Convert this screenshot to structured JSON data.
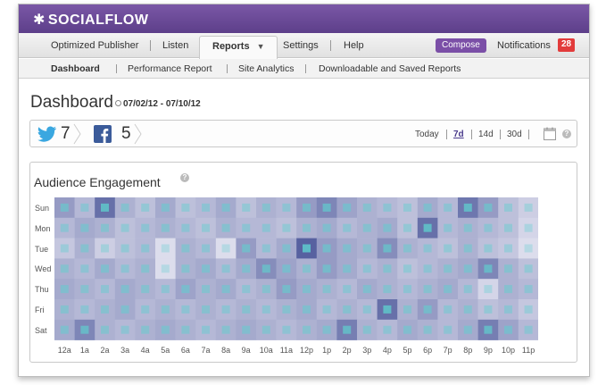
{
  "brand": {
    "name": "SOCIALFLOW",
    "logo_icon": "asterisk-star-icon"
  },
  "nav": {
    "items": [
      {
        "label": "Optimized Publisher"
      },
      {
        "label": "Listen"
      },
      {
        "label": "Reports",
        "active": true
      },
      {
        "label": "Settings"
      },
      {
        "label": "Help"
      }
    ],
    "compose_label": "Compose",
    "notifications_label": "Notifications",
    "notifications_count": "28"
  },
  "subnav": {
    "items": [
      {
        "label": "Dashboard",
        "active": true
      },
      {
        "label": "Performance Report"
      },
      {
        "label": "Site Analytics"
      },
      {
        "label": "Downloadable and Saved Reports"
      }
    ]
  },
  "page": {
    "title": "Dashboard",
    "date_range": "07/02/12 - 07/10/12"
  },
  "toolbar": {
    "twitter_count": "7",
    "facebook_count": "5",
    "ranges": [
      {
        "label": "Today"
      },
      {
        "label": "7d",
        "selected": true
      },
      {
        "label": "14d"
      },
      {
        "label": "30d"
      }
    ]
  },
  "engagement": {
    "title": "Audience Engagement",
    "days": [
      "Sun",
      "Mon",
      "Tue",
      "Wed",
      "Thu",
      "Fri",
      "Sat"
    ],
    "hours": [
      "12a",
      "1a",
      "2a",
      "3a",
      "4a",
      "5a",
      "6a",
      "7a",
      "8a",
      "9a",
      "10a",
      "11a",
      "12p",
      "1p",
      "2p",
      "3p",
      "4p",
      "5p",
      "6p",
      "7p",
      "8p",
      "9p",
      "10p",
      "11p"
    ],
    "colors": {
      "low": "#ecebf5",
      "high": "#4f5a9c",
      "dot": "#5fd0cf"
    }
  },
  "chart_data": {
    "type": "heatmap",
    "title": "Audience Engagement",
    "y_categories": [
      "Sun",
      "Mon",
      "Tue",
      "Wed",
      "Thu",
      "Fri",
      "Sat"
    ],
    "x_categories": [
      "12a",
      "1a",
      "2a",
      "3a",
      "4a",
      "5a",
      "6a",
      "7a",
      "8a",
      "9a",
      "10a",
      "11a",
      "12p",
      "1p",
      "2p",
      "3p",
      "4p",
      "5p",
      "6p",
      "7p",
      "8p",
      "9p",
      "10p",
      "11p"
    ],
    "value_range": [
      0,
      1
    ],
    "values": [
      [
        0.55,
        0.35,
        0.85,
        0.4,
        0.3,
        0.45,
        0.3,
        0.35,
        0.45,
        0.3,
        0.4,
        0.35,
        0.55,
        0.7,
        0.5,
        0.4,
        0.35,
        0.3,
        0.45,
        0.35,
        0.8,
        0.55,
        0.3,
        0.2
      ],
      [
        0.35,
        0.45,
        0.4,
        0.3,
        0.35,
        0.4,
        0.35,
        0.3,
        0.4,
        0.35,
        0.35,
        0.3,
        0.4,
        0.45,
        0.35,
        0.4,
        0.45,
        0.3,
        0.85,
        0.35,
        0.4,
        0.35,
        0.3,
        0.15
      ],
      [
        0.25,
        0.4,
        0.2,
        0.3,
        0.35,
        0.1,
        0.4,
        0.35,
        0.1,
        0.55,
        0.35,
        0.45,
        0.95,
        0.55,
        0.45,
        0.4,
        0.65,
        0.4,
        0.35,
        0.3,
        0.4,
        0.3,
        0.25,
        0.1
      ],
      [
        0.4,
        0.35,
        0.45,
        0.35,
        0.4,
        0.1,
        0.4,
        0.45,
        0.35,
        0.45,
        0.65,
        0.5,
        0.4,
        0.55,
        0.45,
        0.35,
        0.4,
        0.3,
        0.35,
        0.4,
        0.45,
        0.7,
        0.4,
        0.3
      ],
      [
        0.45,
        0.4,
        0.35,
        0.45,
        0.4,
        0.35,
        0.5,
        0.4,
        0.45,
        0.35,
        0.4,
        0.55,
        0.45,
        0.4,
        0.35,
        0.45,
        0.4,
        0.35,
        0.4,
        0.45,
        0.35,
        0.15,
        0.4,
        0.35
      ],
      [
        0.4,
        0.35,
        0.4,
        0.45,
        0.35,
        0.4,
        0.35,
        0.4,
        0.35,
        0.4,
        0.35,
        0.4,
        0.45,
        0.35,
        0.4,
        0.35,
        0.85,
        0.4,
        0.55,
        0.35,
        0.4,
        0.3,
        0.35,
        0.25
      ],
      [
        0.45,
        0.7,
        0.4,
        0.35,
        0.4,
        0.45,
        0.4,
        0.35,
        0.4,
        0.45,
        0.4,
        0.35,
        0.4,
        0.45,
        0.75,
        0.4,
        0.35,
        0.45,
        0.4,
        0.35,
        0.45,
        0.75,
        0.5,
        0.35
      ]
    ],
    "legend": "none",
    "grid": false
  }
}
